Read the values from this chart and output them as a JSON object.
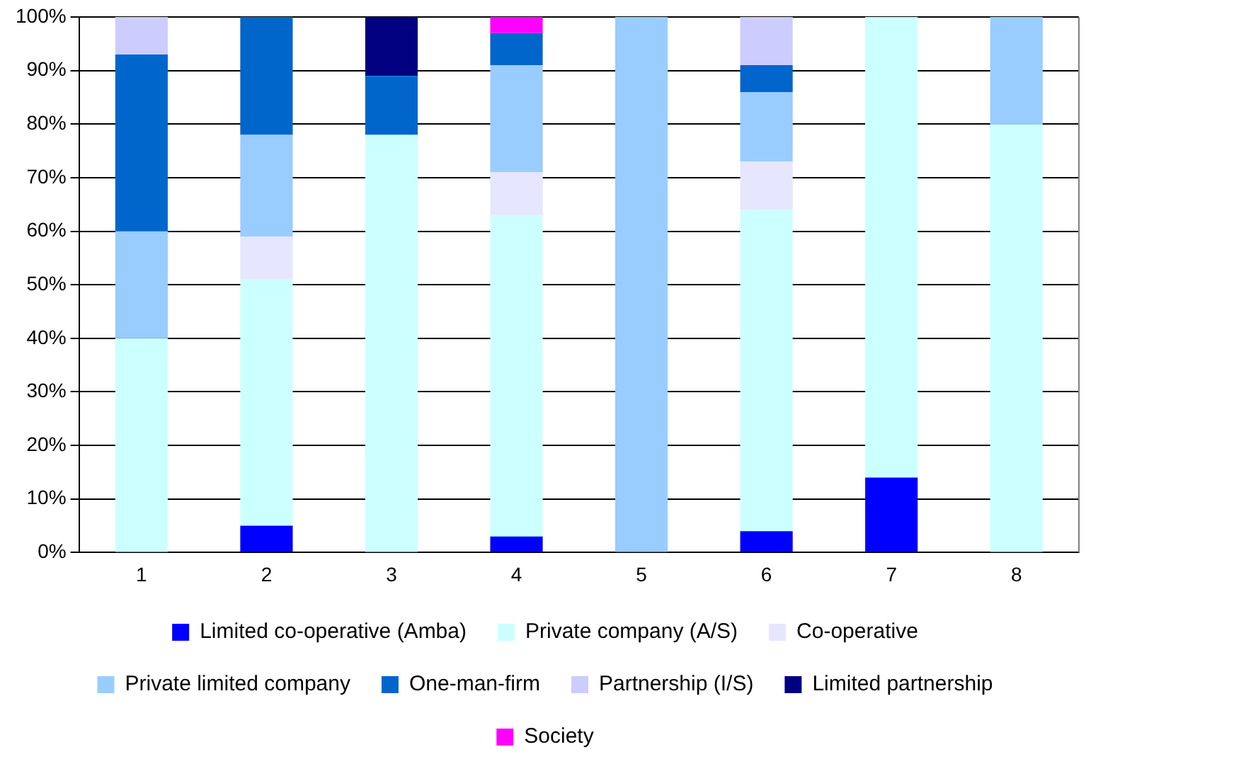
{
  "chart_data": {
    "type": "bar",
    "stacked": true,
    "categories": [
      "1",
      "2",
      "3",
      "4",
      "5",
      "6",
      "7",
      "8"
    ],
    "series": [
      {
        "name": "Limited co-operative (Amba)",
        "color": "#0000ff",
        "values": [
          null,
          5,
          null,
          3,
          null,
          4,
          14,
          null
        ]
      },
      {
        "name": "Private company (A/S)",
        "color": "#ccffff",
        "values": [
          40,
          46,
          78,
          60,
          null,
          60,
          86,
          80
        ]
      },
      {
        "name": "Co-operative",
        "color": "#e6e6ff",
        "values": [
          null,
          8,
          null,
          8,
          null,
          9,
          null,
          null
        ]
      },
      {
        "name": "Private limited company",
        "color": "#99ccff",
        "values": [
          20,
          19,
          null,
          20,
          100,
          13,
          null,
          20
        ]
      },
      {
        "name": "One-man-firm",
        "color": "#0066cc",
        "values": [
          33,
          22,
          11,
          6,
          null,
          5,
          null,
          null
        ]
      },
      {
        "name": "Partnership (I/S)",
        "color": "#ccccff",
        "values": [
          7,
          null,
          null,
          null,
          null,
          9,
          null,
          null
        ]
      },
      {
        "name": "Limited partnership",
        "color": "#000080",
        "values": [
          null,
          null,
          11,
          null,
          null,
          null,
          null,
          null
        ]
      },
      {
        "name": "Society",
        "color": "#ff00ff",
        "values": [
          null,
          null,
          null,
          3,
          null,
          null,
          null,
          null
        ]
      }
    ],
    "ylim": [
      0,
      100
    ],
    "yticks": [
      {
        "value": 0,
        "label": "0%"
      },
      {
        "value": 10,
        "label": "10%"
      },
      {
        "value": 20,
        "label": "20%"
      },
      {
        "value": 30,
        "label": "30%"
      },
      {
        "value": 40,
        "label": "40%"
      },
      {
        "value": 50,
        "label": "50%"
      },
      {
        "value": 60,
        "label": "60%"
      },
      {
        "value": 70,
        "label": "70%"
      },
      {
        "value": 80,
        "label": "80%"
      },
      {
        "value": 90,
        "label": "90%"
      },
      {
        "value": 100,
        "label": "100%"
      }
    ],
    "grid": "y",
    "legend": "bottom"
  }
}
